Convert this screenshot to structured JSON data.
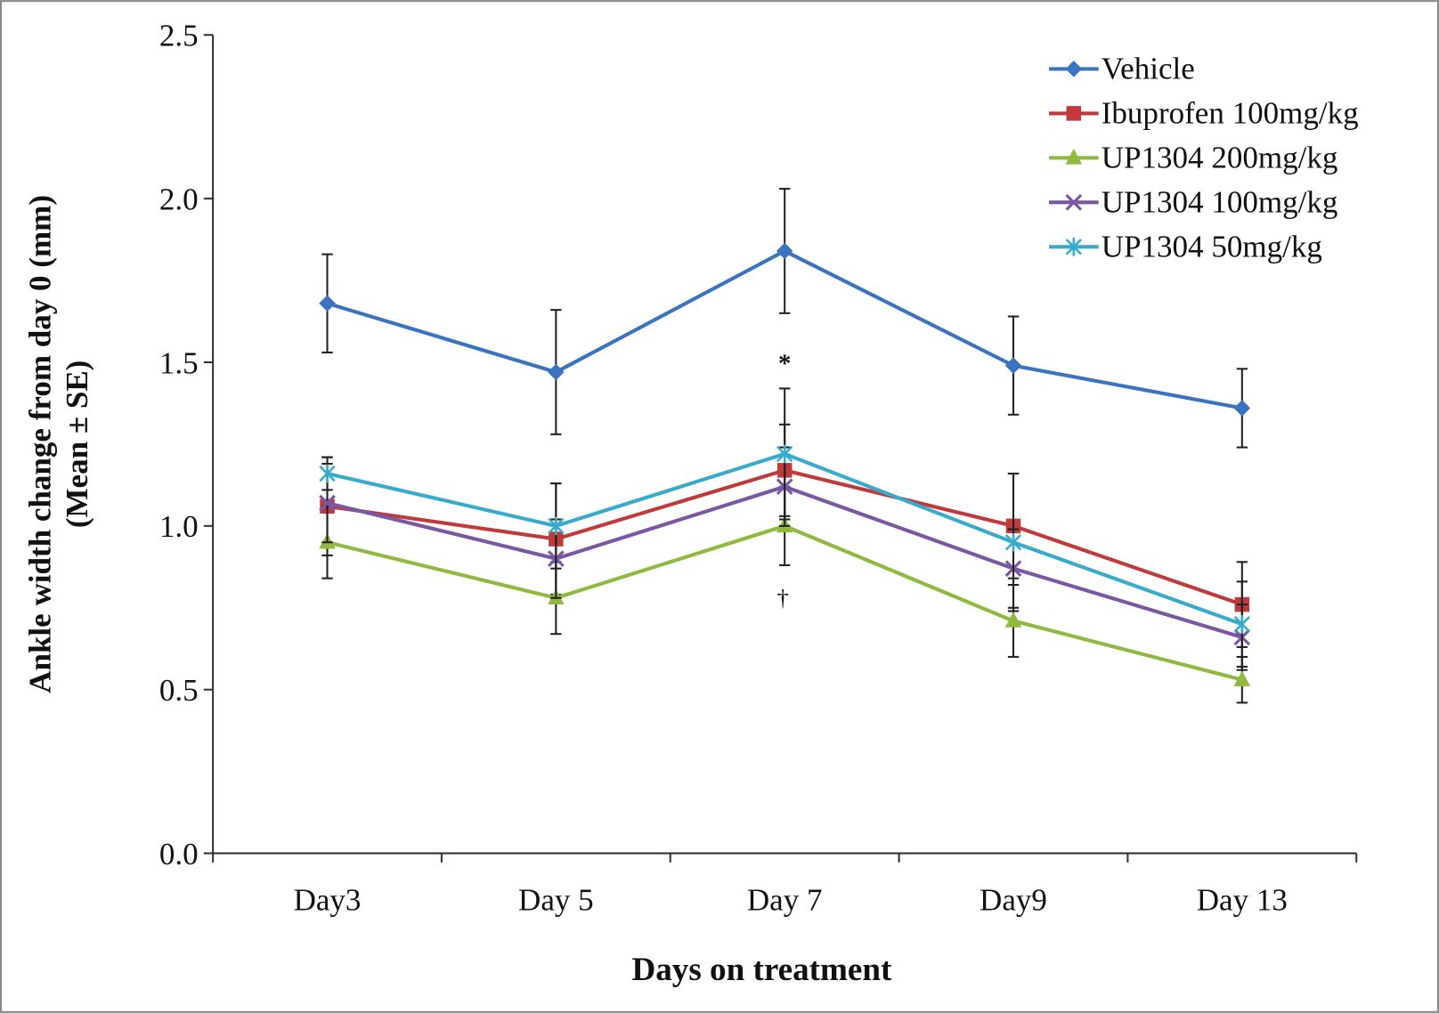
{
  "chart_data": {
    "type": "line",
    "xlabel": "Days on treatment",
    "ylabel": [
      "Ankle width change from day 0 (mm)",
      "(Mean ± SE)"
    ],
    "categories": [
      "Day3",
      "Day 5",
      "Day 7",
      "Day9",
      "Day 13"
    ],
    "ylim": [
      0,
      2.5
    ],
    "yticks": [
      {
        "value": 0,
        "label": "0.0"
      },
      0.5,
      {
        "value": 1,
        "label": "1.0"
      },
      1.5,
      {
        "value": 2,
        "label": "2.0"
      },
      2.5
    ],
    "annotations": [
      "*",
      "†"
    ],
    "series": [
      {
        "name": "Vehicle",
        "color": "#3a73c0",
        "marker": "diamond",
        "values": [
          1.68,
          1.47,
          1.84,
          1.49,
          1.36
        ],
        "errors": [
          0.15,
          0.19,
          0.19,
          0.15,
          0.12
        ]
      },
      {
        "name": "Ibuprofen 100mg/kg",
        "color": "#c0393b",
        "marker": "square",
        "values": [
          1.06,
          0.96,
          1.17,
          1.0,
          0.76
        ],
        "errors": [
          0.15,
          0.17,
          0.14,
          0.16,
          0.13
        ]
      },
      {
        "name": "UP1304 200mg/kg",
        "color": "#8fb93f",
        "marker": "triangle",
        "values": [
          0.95,
          0.78,
          1.0,
          0.71,
          0.53
        ],
        "errors": [
          0.11,
          0.11,
          0.12,
          0.11,
          0.07
        ]
      },
      {
        "name": "UP1304 100mg/kg",
        "color": "#7a57a3",
        "marker": "x",
        "values": [
          1.07,
          0.9,
          1.12,
          0.87,
          0.66
        ],
        "errors": [
          0.12,
          0.12,
          0.12,
          0.12,
          0.1
        ]
      },
      {
        "name": "UP1304 50mg/kg",
        "color": "#38aacb",
        "marker": "star",
        "values": [
          1.16,
          1.0,
          1.22,
          0.95,
          0.7
        ],
        "errors": [
          0.05,
          0.13,
          0.2,
          0.21,
          0.13
        ]
      }
    ]
  }
}
